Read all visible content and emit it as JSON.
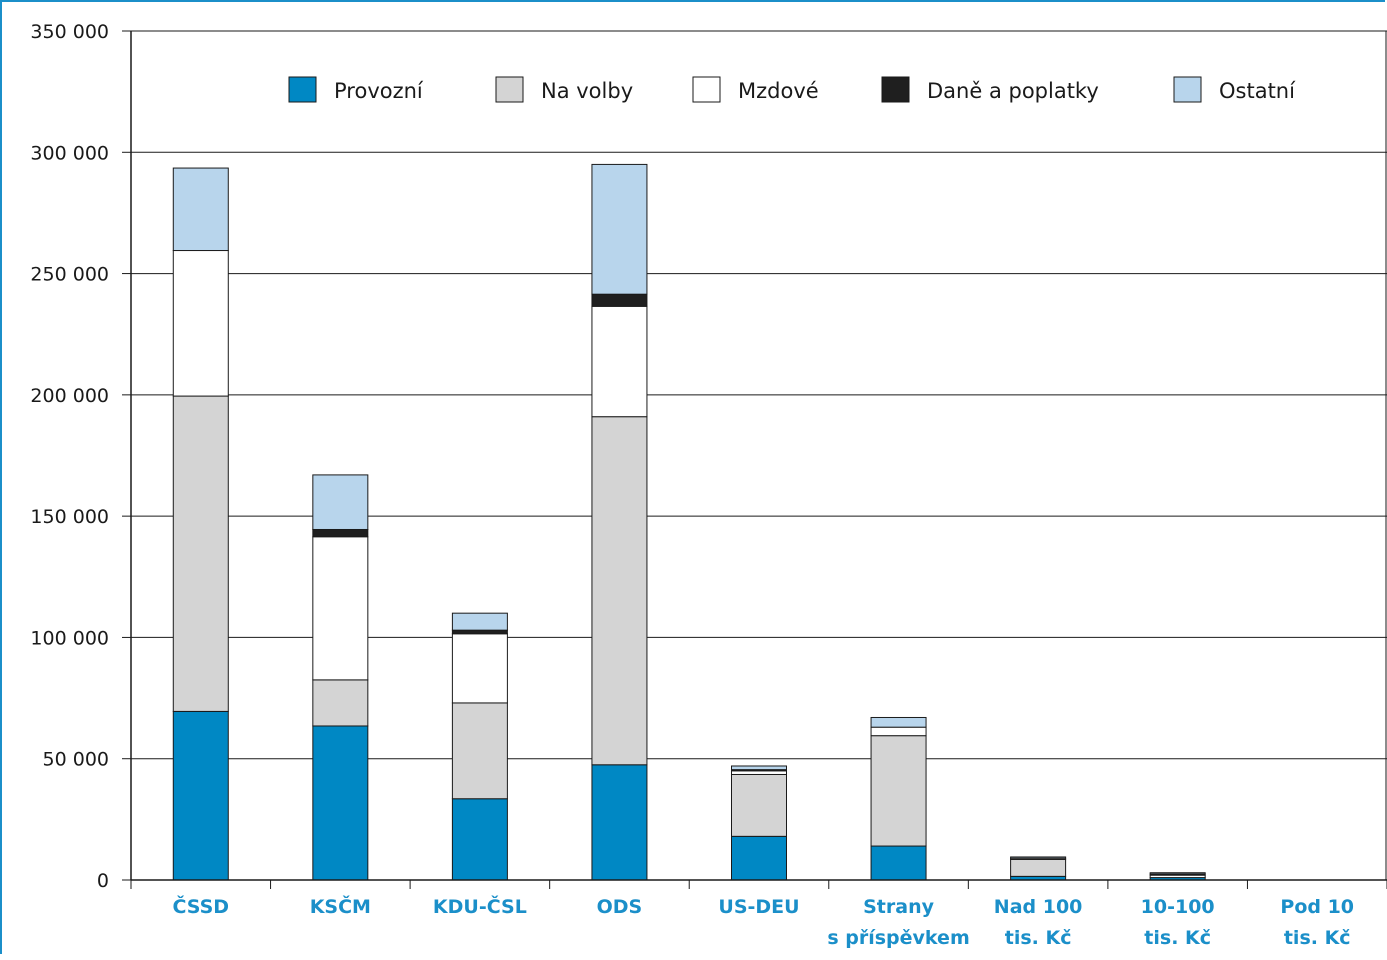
{
  "chart_data": {
    "type": "bar",
    "stacked": true,
    "categories": [
      [
        "ČSSD"
      ],
      [
        "KSČM"
      ],
      [
        "KDU-ČSL"
      ],
      [
        "ODS"
      ],
      [
        "US-DEU"
      ],
      [
        "Strany",
        "s příspěvkem"
      ],
      [
        "Nad 100",
        "tis. Kč"
      ],
      [
        "10-100",
        "tis. Kč"
      ],
      [
        "Pod 10",
        "tis. Kč"
      ]
    ],
    "series": [
      {
        "name": "Provozní",
        "color": "#0088c4",
        "values": [
          69500,
          63500,
          33500,
          47500,
          18000,
          14000,
          1500,
          1000,
          0
        ]
      },
      {
        "name": "Na volby",
        "color": "#d4d4d4",
        "values": [
          130000,
          19000,
          39500,
          143500,
          25500,
          45500,
          7000,
          0,
          0
        ]
      },
      {
        "name": "Mzdové",
        "color": "#ffffff",
        "values": [
          60000,
          59000,
          28500,
          45500,
          1500,
          3500,
          500,
          1000,
          0
        ]
      },
      {
        "name": "Daně a poplatky",
        "color": "#1f1f1f",
        "values": [
          0,
          3000,
          1500,
          5000,
          500,
          0,
          0,
          500,
          0
        ]
      },
      {
        "name": "Ostatní",
        "color": "#b8d5ec",
        "values": [
          34000,
          22500,
          7000,
          53500,
          1500,
          4000,
          500,
          500,
          0
        ]
      }
    ],
    "yticks": [
      "0",
      "50 000",
      "100 000",
      "150 000",
      "200 000",
      "250 000",
      "300 000",
      "350 000"
    ],
    "ylim": [
      0,
      350000
    ],
    "grid": true,
    "legend_position": "top"
  }
}
